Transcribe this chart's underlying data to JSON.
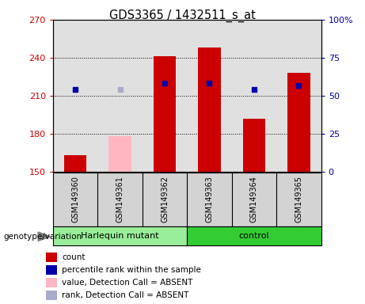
{
  "title": "GDS3365 / 1432511_s_at",
  "samples": [
    "GSM149360",
    "GSM149361",
    "GSM149362",
    "GSM149363",
    "GSM149364",
    "GSM149365"
  ],
  "bar_values": [
    163,
    178,
    241,
    248,
    192,
    228
  ],
  "bar_absent": [
    false,
    true,
    false,
    false,
    false,
    false
  ],
  "percentile_values": [
    215,
    215,
    220,
    220,
    215,
    218
  ],
  "percentile_absent": [
    false,
    true,
    false,
    false,
    false,
    false
  ],
  "bar_color_present": "#CC0000",
  "bar_color_absent": "#FFB6C1",
  "pct_color_present": "#0000AA",
  "pct_color_absent": "#AAAACC",
  "ylim_left": [
    150,
    270
  ],
  "ylim_right": [
    0,
    100
  ],
  "yticks_left": [
    150,
    180,
    210,
    240,
    270
  ],
  "yticks_right": [
    0,
    25,
    50,
    75,
    100
  ],
  "ytick_labels_right": [
    "0",
    "25",
    "50",
    "75",
    "100%"
  ],
  "bar_width": 0.5,
  "plot_bg": "#E0E0E0",
  "legend_items": [
    {
      "label": "count",
      "color": "#CC0000"
    },
    {
      "label": "percentile rank within the sample",
      "color": "#0000AA"
    },
    {
      "label": "value, Detection Call = ABSENT",
      "color": "#FFB6C1"
    },
    {
      "label": "rank, Detection Call = ABSENT",
      "color": "#AAAACC"
    }
  ],
  "group1_label": "Harlequin mutant",
  "group2_label": "control",
  "group1_color": "#99EE99",
  "group2_color": "#33CC33",
  "genotype_label": "genotype/variation"
}
